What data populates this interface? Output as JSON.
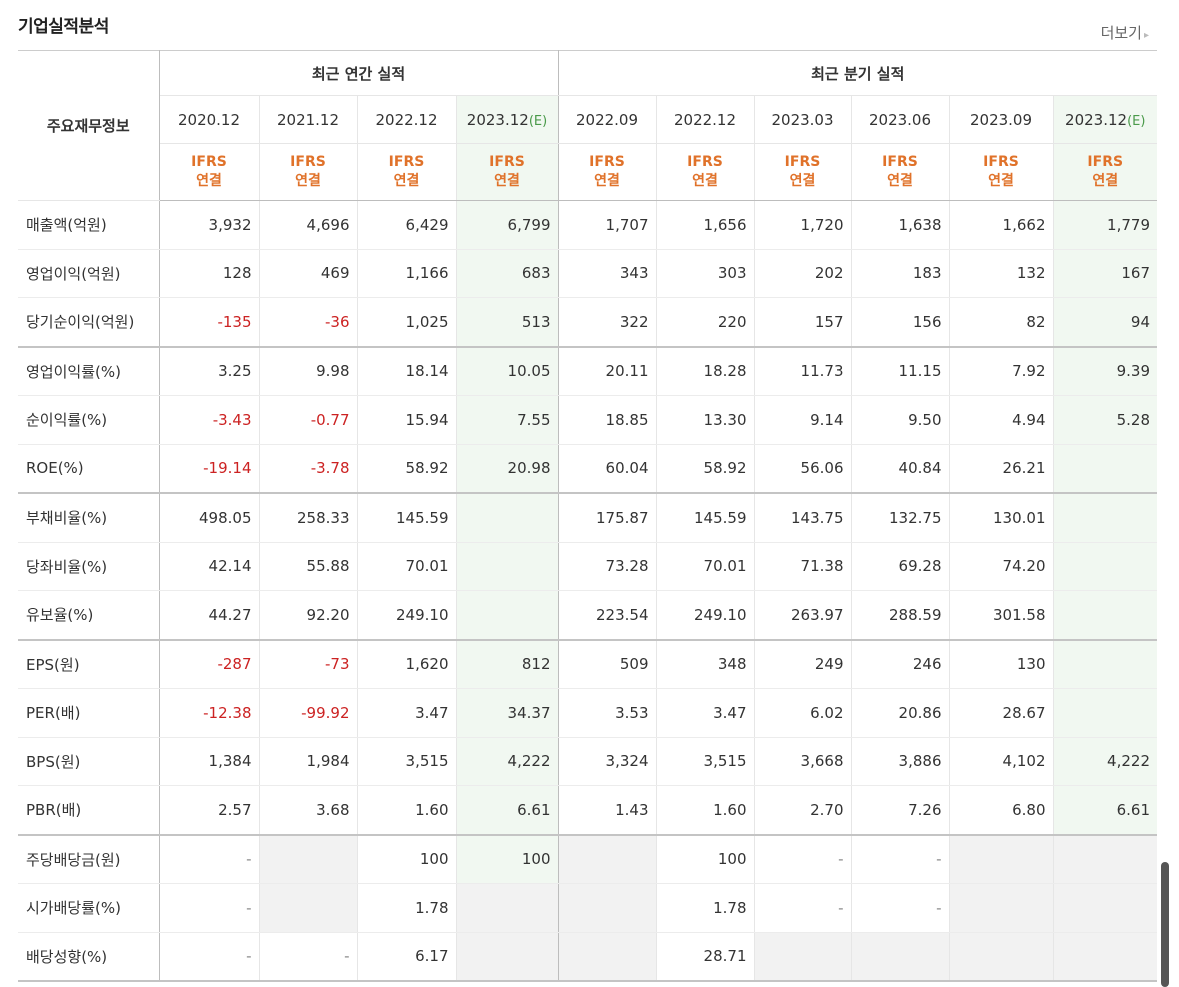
{
  "header": {
    "title": "기업실적분석",
    "more_label": "더보기",
    "more_arrow": "▸"
  },
  "table": {
    "label_header": "주요재무정보",
    "group_annual": "최근 연간 실적",
    "group_quarter": "최근 분기 실적",
    "periods": [
      {
        "date": "2020.12",
        "est": ""
      },
      {
        "date": "2021.12",
        "est": ""
      },
      {
        "date": "2022.12",
        "est": ""
      },
      {
        "date": "2023.12",
        "est": "(E)"
      },
      {
        "date": "2022.09",
        "est": ""
      },
      {
        "date": "2022.12",
        "est": ""
      },
      {
        "date": "2023.03",
        "est": ""
      },
      {
        "date": "2023.06",
        "est": ""
      },
      {
        "date": "2023.09",
        "est": ""
      },
      {
        "date": "2023.12",
        "est": "(E)"
      }
    ],
    "ifrs_line1": "IFRS",
    "ifrs_line2": "연결",
    "rows": [
      {
        "label": "매출액(억원)",
        "values": [
          "3,932",
          "4,696",
          "6,429",
          "6,799",
          "1,707",
          "1,656",
          "1,720",
          "1,638",
          "1,662",
          "1,779"
        ]
      },
      {
        "label": "영업이익(억원)",
        "values": [
          "128",
          "469",
          "1,166",
          "683",
          "343",
          "303",
          "202",
          "183",
          "132",
          "167"
        ]
      },
      {
        "label": "당기순이익(억원)",
        "values": [
          "-135",
          "-36",
          "1,025",
          "513",
          "322",
          "220",
          "157",
          "156",
          "82",
          "94"
        ]
      },
      {
        "label": "영업이익률(%)",
        "values": [
          "3.25",
          "9.98",
          "18.14",
          "10.05",
          "20.11",
          "18.28",
          "11.73",
          "11.15",
          "7.92",
          "9.39"
        ]
      },
      {
        "label": "순이익률(%)",
        "values": [
          "-3.43",
          "-0.77",
          "15.94",
          "7.55",
          "18.85",
          "13.30",
          "9.14",
          "9.50",
          "4.94",
          "5.28"
        ]
      },
      {
        "label": "ROE(%)",
        "values": [
          "-19.14",
          "-3.78",
          "58.92",
          "20.98",
          "60.04",
          "58.92",
          "56.06",
          "40.84",
          "26.21",
          ""
        ]
      },
      {
        "label": "부채비율(%)",
        "values": [
          "498.05",
          "258.33",
          "145.59",
          "",
          "175.87",
          "145.59",
          "143.75",
          "132.75",
          "130.01",
          ""
        ]
      },
      {
        "label": "당좌비율(%)",
        "values": [
          "42.14",
          "55.88",
          "70.01",
          "",
          "73.28",
          "70.01",
          "71.38",
          "69.28",
          "74.20",
          ""
        ]
      },
      {
        "label": "유보율(%)",
        "values": [
          "44.27",
          "92.20",
          "249.10",
          "",
          "223.54",
          "249.10",
          "263.97",
          "288.59",
          "301.58",
          ""
        ]
      },
      {
        "label": "EPS(원)",
        "values": [
          "-287",
          "-73",
          "1,620",
          "812",
          "509",
          "348",
          "249",
          "246",
          "130",
          ""
        ]
      },
      {
        "label": "PER(배)",
        "values": [
          "-12.38",
          "-99.92",
          "3.47",
          "34.37",
          "3.53",
          "3.47",
          "6.02",
          "20.86",
          "28.67",
          ""
        ]
      },
      {
        "label": "BPS(원)",
        "values": [
          "1,384",
          "1,984",
          "3,515",
          "4,222",
          "3,324",
          "3,515",
          "3,668",
          "3,886",
          "4,102",
          "4,222"
        ]
      },
      {
        "label": "PBR(배)",
        "values": [
          "2.57",
          "3.68",
          "1.60",
          "6.61",
          "1.43",
          "1.60",
          "2.70",
          "7.26",
          "6.80",
          "6.61"
        ]
      },
      {
        "label": "주당배당금(원)",
        "values": [
          "-",
          "",
          "100",
          "100",
          "",
          "100",
          "-",
          "-",
          "",
          ""
        ]
      },
      {
        "label": "시가배당률(%)",
        "values": [
          "-",
          "",
          "1.78",
          "",
          "",
          "1.78",
          "-",
          "-",
          "",
          ""
        ]
      },
      {
        "label": "배당성향(%)",
        "values": [
          "-",
          "-",
          "6.17",
          "",
          "",
          "28.71",
          "",
          "",
          "",
          ""
        ]
      }
    ]
  },
  "colors": {
    "negative": "#cc2222",
    "ifrs": "#e0722a",
    "estimate_bg": "#f1f8f1",
    "empty_bg": "#f2f2f2"
  }
}
